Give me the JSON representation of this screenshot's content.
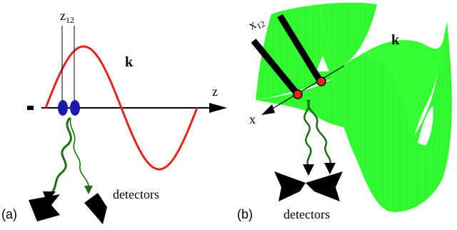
{
  "panel_a": {
    "label": "(a)",
    "separation_label": "z",
    "separation_subscript": "12",
    "wavevector_label": "k",
    "axis_label": "z",
    "detectors_label": "detectors",
    "wave_color": "#e8231c",
    "atom_color": "#1a1ab0",
    "photon_color": "#1a6e10"
  },
  "panel_b": {
    "label": "(b)",
    "separation_label": "x",
    "separation_subscript": "12",
    "wavevector_label": "k",
    "axis_label": "x",
    "detectors_label": "detectors",
    "wave_color": "#33ff33",
    "atom_color": "#e8231c",
    "photon_color": "#1a6e10"
  }
}
